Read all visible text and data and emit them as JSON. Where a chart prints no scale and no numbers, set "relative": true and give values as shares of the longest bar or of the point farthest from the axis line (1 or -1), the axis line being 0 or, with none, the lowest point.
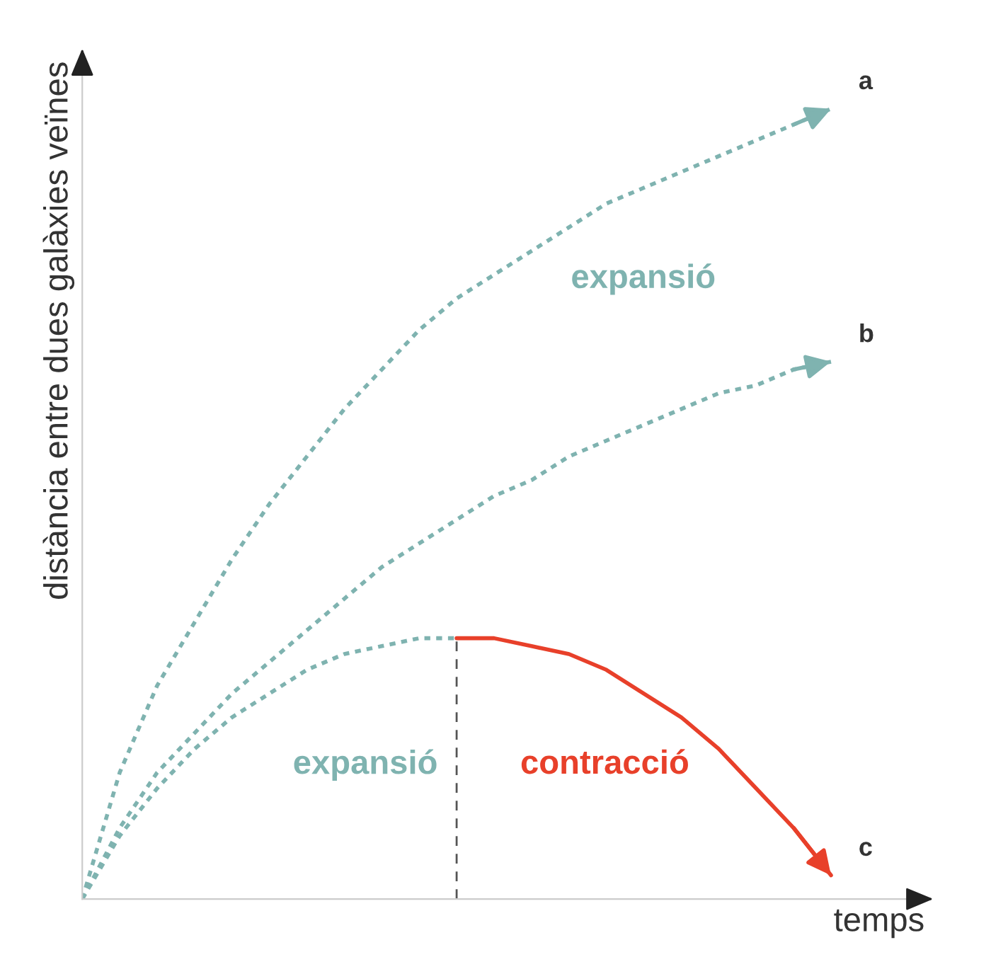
{
  "chart_data": {
    "type": "line",
    "relative": true,
    "xlabel": "temps",
    "ylabel": "distància entre dues galàxies veïnes",
    "categories": [
      null,
      null,
      null,
      null,
      null,
      null,
      null,
      null,
      null,
      null,
      null,
      null,
      null,
      null,
      null,
      null,
      null,
      null,
      null,
      null,
      null
    ],
    "series": [
      {
        "name": "a",
        "color": "#7fb3b0",
        "line_style": "dotted",
        "values": [
          0,
          0.16,
          0.27,
          0.35,
          0.43,
          0.5,
          0.56,
          0.62,
          0.67,
          0.72,
          0.76,
          0.79,
          0.82,
          0.85,
          0.88,
          0.9,
          0.92,
          0.94,
          0.96,
          0.98,
          1.0
        ]
      },
      {
        "name": "b",
        "color": "#7fb3b0",
        "line_style": "dotted",
        "values": [
          0,
          0.09,
          0.16,
          0.21,
          0.26,
          0.3,
          0.34,
          0.38,
          0.42,
          0.45,
          0.48,
          0.51,
          0.53,
          0.56,
          0.58,
          0.6,
          0.62,
          0.64,
          0.65,
          0.67,
          0.68
        ]
      },
      {
        "color": "#7fb3b0",
        "line_style": "dotted",
        "values": [
          0,
          0.08,
          0.14,
          0.19,
          0.23,
          0.26,
          0.29,
          0.31,
          0.32,
          0.33,
          0.33,
          null,
          null,
          null,
          null,
          null,
          null,
          null,
          null,
          null,
          null
        ]
      },
      {
        "name": "c",
        "color": "#e8402a",
        "line_style": "solid",
        "values": [
          null,
          null,
          null,
          null,
          null,
          null,
          null,
          null,
          null,
          null,
          0.33,
          0.33,
          0.32,
          0.31,
          0.29,
          0.26,
          0.23,
          0.19,
          0.14,
          0.09,
          0.03
        ]
      }
    ],
    "annotations": [
      "expansió",
      "expansió",
      "contracció"
    ]
  }
}
